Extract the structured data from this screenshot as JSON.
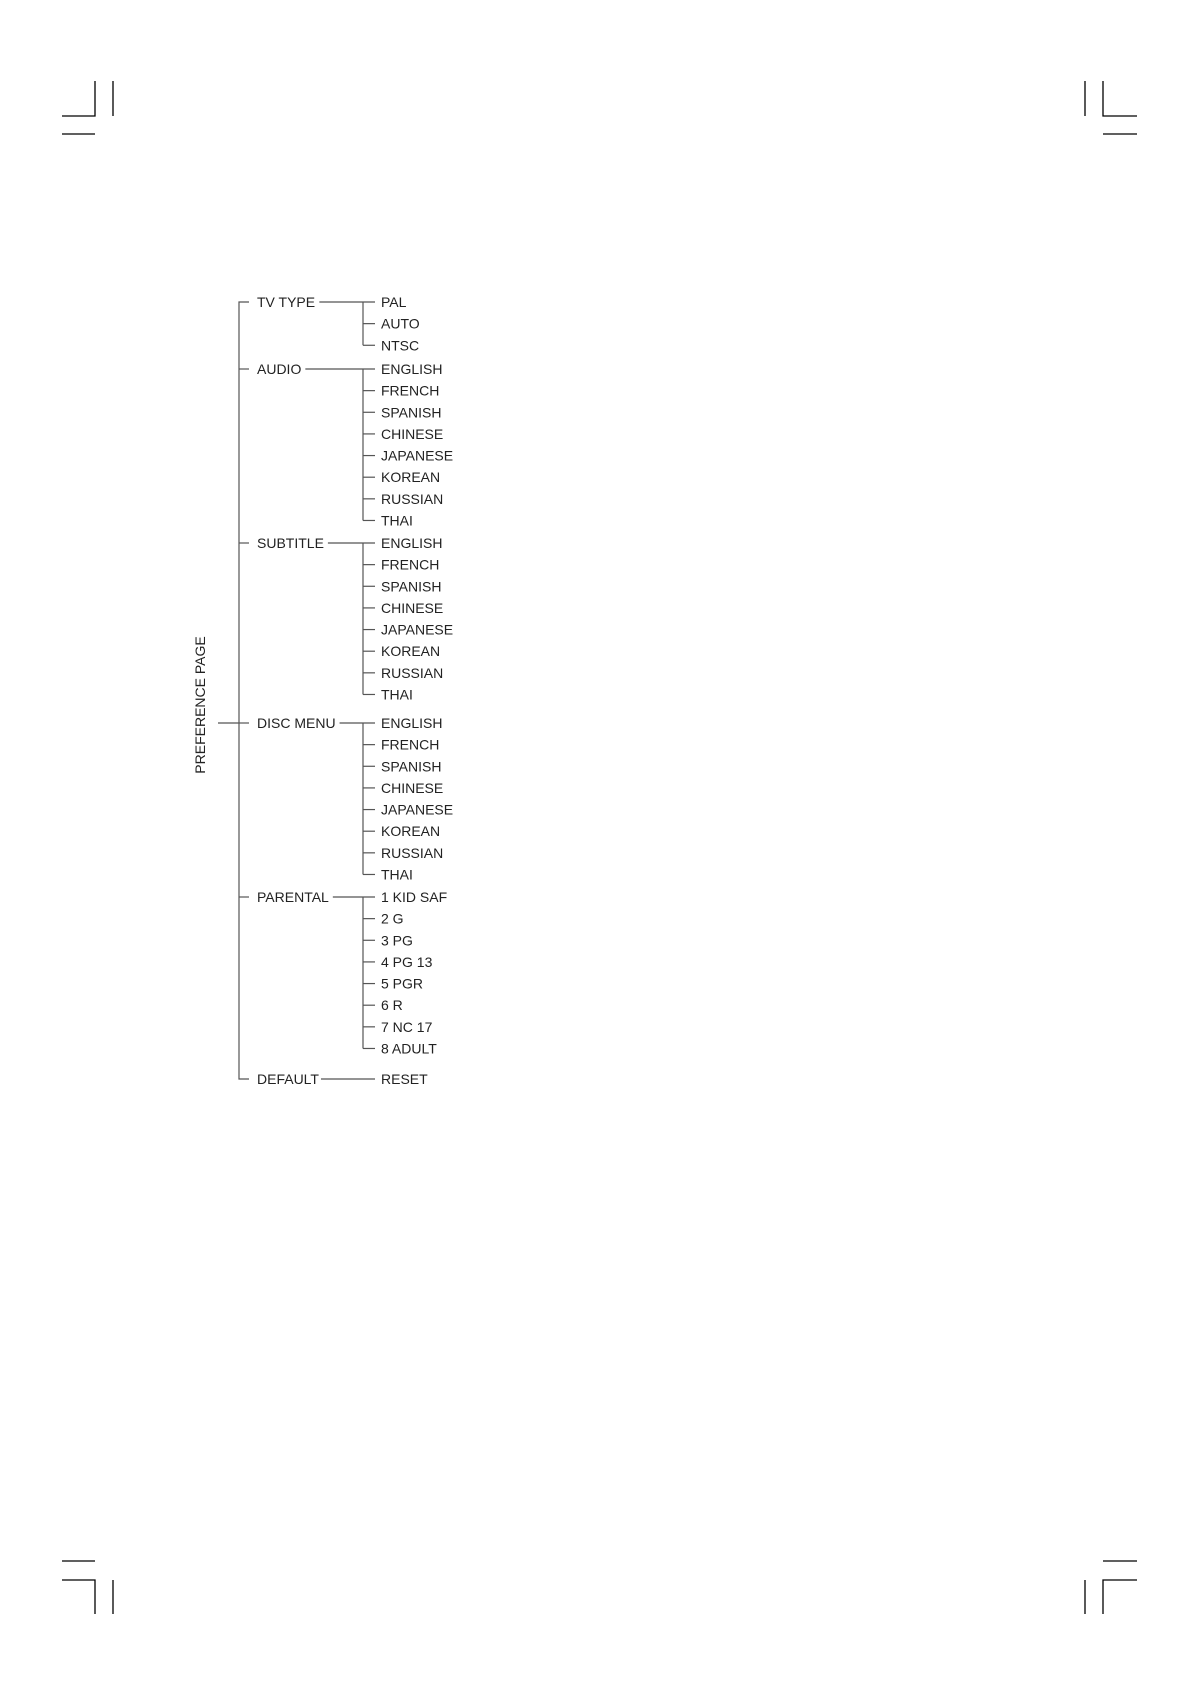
{
  "root": {
    "label": "PREFERENCE PAGE"
  },
  "categories": [
    {
      "label": "TV TYPE",
      "options": [
        "PAL",
        "AUTO",
        "NTSC"
      ]
    },
    {
      "label": "AUDIO",
      "options": [
        "ENGLISH",
        "FRENCH",
        "SPANISH",
        "CHINESE",
        "JAPANESE",
        "KOREAN",
        "RUSSIAN",
        "THAI"
      ]
    },
    {
      "label": "SUBTITLE",
      "options": [
        "ENGLISH",
        "FRENCH",
        "SPANISH",
        "CHINESE",
        "JAPANESE",
        "KOREAN",
        "RUSSIAN",
        "THAI"
      ]
    },
    {
      "label": "DISC MENU",
      "options": [
        "ENGLISH",
        "FRENCH",
        "SPANISH",
        "CHINESE",
        "JAPANESE",
        "KOREAN",
        "RUSSIAN",
        "THAI"
      ]
    },
    {
      "label": "PARENTAL",
      "options": [
        "1  KID SAF",
        "2  G",
        "3  PG",
        "4  PG 13",
        "5  PGR",
        "6  R",
        "7  NC 17",
        "8  ADULT"
      ]
    },
    {
      "label": "DEFAULT",
      "options": [
        "RESET"
      ]
    }
  ]
}
